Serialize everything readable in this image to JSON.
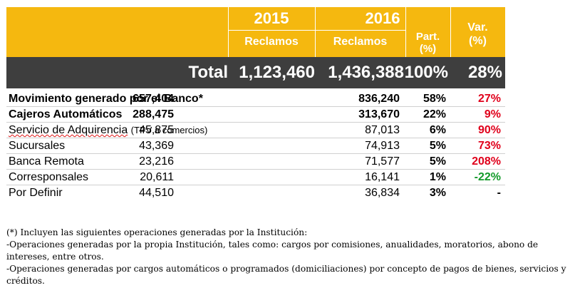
{
  "header": {
    "year_2015": "2015",
    "year_2016": "2016",
    "reclamos_2015": "Reclamos",
    "reclamos_2016": "Reclamos",
    "part_label": "Part.",
    "part_unit": "(%)",
    "var_label": "Var.",
    "var_unit": "(%)"
  },
  "total": {
    "label": "Total",
    "v2015": "1,123,460",
    "v2016": "1,436,388",
    "part": "100%",
    "var": "28%"
  },
  "rows": [
    {
      "label": "Movimiento generado por el Banco*",
      "v2015": "657,404",
      "v2016": "836,240",
      "part": "58%",
      "var": "27%"
    },
    {
      "label": "Cajeros Automáticos",
      "v2015": "288,475",
      "v2016": "313,670",
      "part": "22%",
      "var": "9%"
    },
    {
      "label": "Servicio de Adquirencia",
      "label_note": "(TPV a comercios)",
      "v2015": "45,875",
      "v2016": "87,013",
      "part": "6%",
      "var": "90%"
    },
    {
      "label": "Sucursales",
      "v2015": "43,369",
      "v2016": "74,913",
      "part": "5%",
      "var": "73%"
    },
    {
      "label": "Banca Remota",
      "v2015": "23,216",
      "v2016": "71,577",
      "part": "5%",
      "var": "208%"
    },
    {
      "label": "Corresponsales",
      "v2015": "20,611",
      "v2016": "16,141",
      "part": "1%",
      "var": "-22%"
    },
    {
      "label": "Por Definir",
      "v2015": "44,510",
      "v2016": "36,834",
      "part": "3%",
      "var": "-"
    }
  ],
  "notes": [
    "(*) Incluyen las siguientes operaciones generadas por la Institución:",
    "-Operaciones generadas por la propia Institución, tales como: cargos por comisiones, anualidades, moratorios, abono de intereses, entre otros.",
    "-Operaciones generadas por cargos automáticos o programados (domiciliaciones) por concepto de pagos de bienes, servicios y créditos."
  ],
  "colors": {
    "header_bg": "#f5b80f",
    "total_bg": "#3e3e3e",
    "positive_var": "#e0001b",
    "negative_var": "#139a2a"
  }
}
